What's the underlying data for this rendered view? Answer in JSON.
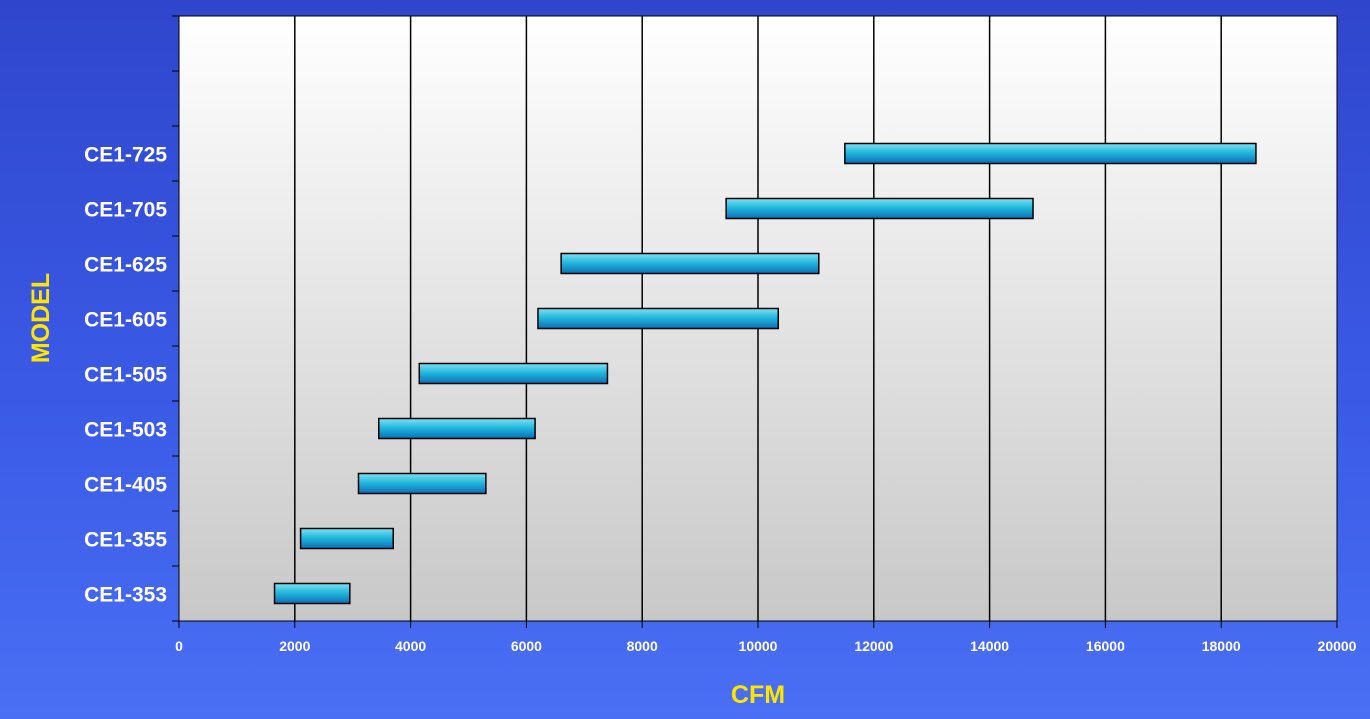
{
  "chart_data": {
    "type": "bar",
    "orientation": "horizontal-range",
    "title": "",
    "xlabel": "CFM",
    "ylabel": "MODEL",
    "xlim": [
      0,
      20000
    ],
    "xticks": [
      "0",
      "2000",
      "4000",
      "6000",
      "8000",
      "10000",
      "12000",
      "14000",
      "16000",
      "18000",
      "20000"
    ],
    "grid": "vertical",
    "categories": [
      "CE1-353",
      "CE1-355",
      "CE1-405",
      "CE1-503",
      "CE1-505",
      "CE1-605",
      "CE1-625",
      "CE1-705",
      "CE1-725"
    ],
    "ranges": [
      [
        1650,
        2950
      ],
      [
        2100,
        3700
      ],
      [
        3100,
        5300
      ],
      [
        3450,
        6150
      ],
      [
        4150,
        7400
      ],
      [
        6200,
        10350
      ],
      [
        6600,
        11050
      ],
      [
        9450,
        14750
      ],
      [
        11500,
        18600
      ]
    ],
    "bar_color": "#1fb6d8",
    "plot_background": "#ececec"
  }
}
